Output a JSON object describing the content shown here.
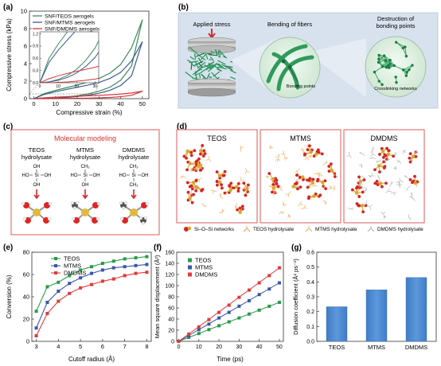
{
  "panels": {
    "a": "(a)",
    "b": "(b)",
    "c": "(c)",
    "d": "(d)",
    "e": "(e)",
    "f": "(f)",
    "g": "(g)"
  },
  "panel_a": {
    "chart_data": {
      "type": "line",
      "xlabel": "Compressive strain (%)",
      "ylabel": "Compressive stress (kPa)",
      "xlim": [
        -2,
        53
      ],
      "ylim": [
        0,
        10
      ],
      "xticks": [
        "0",
        "10",
        "20",
        "30",
        "40",
        "50"
      ],
      "yticks": [
        "0",
        "2",
        "4",
        "6",
        "8",
        "10"
      ],
      "series": [
        {
          "name": "SNF/TEOS aerogels",
          "color": "#3c8a5a",
          "load_x": [
            0,
            5,
            10,
            15,
            20,
            25,
            30,
            35,
            40,
            45,
            50
          ],
          "load_y": [
            0,
            0.6,
            0.95,
            1.25,
            1.55,
            1.9,
            2.3,
            2.9,
            3.9,
            5.8,
            9.0
          ],
          "unload_x": [
            50,
            45,
            40,
            35,
            30,
            25,
            20,
            15,
            10,
            5,
            0
          ],
          "unload_y": [
            9.0,
            3.7,
            2.1,
            1.3,
            0.85,
            0.55,
            0.33,
            0.18,
            0.08,
            0.02,
            0
          ]
        },
        {
          "name": "SNF/MTMS aerogels",
          "color": "#3a5a92",
          "load_x": [
            0,
            5,
            10,
            15,
            20,
            25,
            30,
            35,
            40,
            45,
            50
          ],
          "load_y": [
            0,
            0.5,
            0.8,
            1.05,
            1.3,
            1.55,
            1.85,
            2.3,
            3.0,
            4.3,
            6.5
          ],
          "unload_x": [
            50,
            45,
            40,
            35,
            30,
            25,
            20,
            15,
            10,
            5,
            0
          ],
          "unload_y": [
            6.5,
            2.6,
            1.5,
            0.95,
            0.62,
            0.4,
            0.24,
            0.13,
            0.06,
            0.02,
            0
          ]
        },
        {
          "name": "SNF/DMDMS aerogels",
          "color": "#d4373b",
          "load_x": [
            0,
            5,
            10,
            15,
            20,
            25,
            30,
            35,
            40,
            45,
            50
          ],
          "load_y": [
            0,
            0.1,
            0.17,
            0.23,
            0.28,
            0.33,
            0.38,
            0.44,
            0.52,
            0.65,
            0.85
          ],
          "unload_x": [
            50,
            45,
            40,
            35,
            30,
            25,
            20,
            15,
            10,
            5,
            0
          ],
          "unload_y": [
            0.85,
            0.38,
            0.22,
            0.14,
            0.09,
            0.06,
            0.04,
            0.02,
            0.01,
            0,
            0
          ]
        }
      ],
      "inset": {
        "xticks": [
          "0",
          "10",
          "20",
          "30"
        ],
        "yticks": [
          "0.0",
          "0.3",
          "0.6",
          "0.9",
          "1.2"
        ],
        "xlim": [
          0,
          32
        ],
        "ylim": [
          0,
          1.25
        ]
      }
    }
  },
  "panel_b": {
    "applied_stress": "Applied stress",
    "bending_title": "Bending of fibers",
    "destruction_title": "Destruction of bonding points",
    "bonding_points": "Bonding points",
    "crosslinking": "Crosslinking networks"
  },
  "panel_c": {
    "title": "Molecular modeling",
    "columns": [
      {
        "name": "TEOS",
        "sub": "hydrolysate",
        "top": "OH",
        "left": "HO",
        "center": "Si",
        "right": "OH",
        "bottom": "OH"
      },
      {
        "name": "MTMS",
        "sub": "hydrolysate",
        "top": "CH₃",
        "left": "HO",
        "center": "Si",
        "right": "OH",
        "bottom": "OH"
      },
      {
        "name": "DMDMS",
        "sub": "hydrolysate",
        "top": "CH₃",
        "left": "HO",
        "center": "Si",
        "right": "OH",
        "bottom": "CH₃"
      }
    ]
  },
  "panel_d": {
    "boxes": [
      "TEOS",
      "MTMS",
      "DMDMS"
    ],
    "legend": [
      "Si–O–Si networks",
      "TEOS hydrolysate",
      "MTMS hydrolysate",
      "DMDMS hydrolysate"
    ]
  },
  "panel_e": {
    "chart_data": {
      "type": "line",
      "xlabel": "Cutoff radius (Å)",
      "ylabel": "Conversion (%)",
      "xlim": [
        2.8,
        8.2
      ],
      "ylim": [
        0,
        80
      ],
      "xticks": [
        "3",
        "4",
        "5",
        "6",
        "7",
        "8"
      ],
      "yticks": [
        "0",
        "20",
        "40",
        "60",
        "80"
      ],
      "x": [
        3.0,
        3.5,
        4.0,
        4.5,
        5.0,
        5.5,
        6.0,
        6.5,
        7.0,
        7.5,
        8.0
      ],
      "series": [
        {
          "name": "TEOS",
          "color": "#2a9a4a",
          "marker": "square",
          "values": [
            27,
            49,
            53,
            59,
            64,
            67,
            70,
            72,
            74,
            75,
            76
          ]
        },
        {
          "name": "MTMS",
          "color": "#3a56a8",
          "marker": "square",
          "values": [
            12,
            35,
            45,
            52,
            57,
            61,
            64,
            66,
            67,
            68,
            69
          ]
        },
        {
          "name": "DMDMS",
          "color": "#e03a3a",
          "marker": "square",
          "values": [
            5,
            25,
            36,
            43,
            48,
            51,
            54,
            56,
            59,
            61,
            62
          ]
        }
      ]
    }
  },
  "panel_f": {
    "chart_data": {
      "type": "scatter",
      "xlabel": "Time (ps)",
      "ylabel": "Mean square displacement (Å²)",
      "xlim": [
        -1,
        52
      ],
      "ylim": [
        0,
        160
      ],
      "xticks": [
        "0",
        "10",
        "20",
        "30",
        "40",
        "50"
      ],
      "yticks": [
        "0",
        "20",
        "40",
        "60",
        "80",
        "100",
        "120",
        "140",
        "160"
      ],
      "x": [
        0,
        5,
        10,
        15,
        20,
        25,
        30,
        35,
        40,
        45,
        50
      ],
      "series": [
        {
          "name": "TEOS",
          "color": "#2a9a4a",
          "values": [
            0,
            7,
            14,
            21,
            28,
            35,
            42,
            49,
            56,
            63,
            70
          ]
        },
        {
          "name": "MTMS",
          "color": "#3a56a8",
          "values": [
            0,
            10,
            21,
            31,
            42,
            52,
            63,
            73,
            84,
            94,
            105
          ]
        },
        {
          "name": "DMDMS",
          "color": "#e03a3a",
          "values": [
            0,
            13,
            26,
            39,
            52,
            65,
            79,
            92,
            105,
            118,
            132
          ]
        }
      ]
    }
  },
  "panel_g": {
    "chart_data": {
      "type": "bar",
      "categories": [
        "TEOS",
        "MTMS",
        "DMDMS"
      ],
      "values": [
        0.233,
        0.347,
        0.43
      ],
      "ylabel": "Diffusion coefficient (Å² ps⁻¹)",
      "ylim": [
        0,
        0.6
      ],
      "yticks": [
        "0.0",
        "0.1",
        "0.2",
        "0.3",
        "0.4",
        "0.5",
        "0.6"
      ],
      "color": "#4a86cf"
    }
  }
}
